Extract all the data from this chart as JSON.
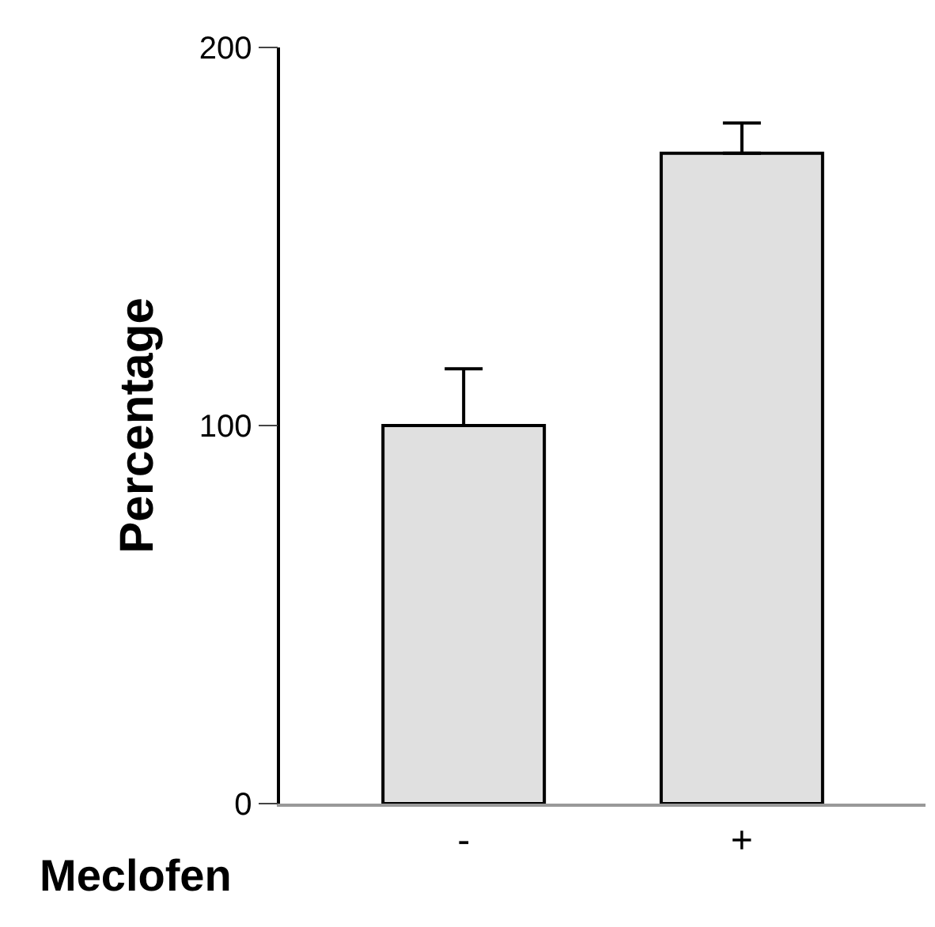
{
  "chart_data": {
    "type": "bar",
    "categories": [
      "-",
      "+"
    ],
    "values": [
      100,
      172
    ],
    "errors": [
      [
        100,
        115
      ],
      [
        172,
        180
      ]
    ],
    "colors": [
      "#e0e0e0",
      "#e0e0e0"
    ],
    "xlabel": "Meclofen",
    "ylabel": "Percentage",
    "ylim": [
      0,
      200
    ],
    "yticks": [
      0,
      100,
      200
    ]
  }
}
